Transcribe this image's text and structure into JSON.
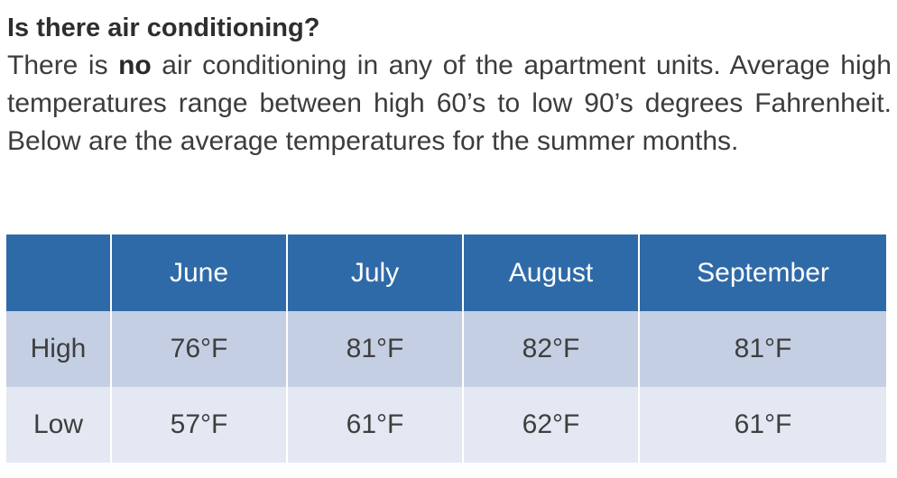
{
  "faq": {
    "question": "Is there air conditioning?",
    "answer_before": "There is ",
    "answer_emphasis": "no",
    "answer_after": " air conditioning in any of the apartment units. Average high temperatures range between high 60’s to low 90’s degrees Fahrenheit. Below are the average temperatures for the summer months."
  },
  "table": {
    "corner": "",
    "columns": [
      "June",
      "July",
      "August",
      "September"
    ],
    "rows": [
      {
        "label": "High",
        "values": [
          "76°F",
          "81°F",
          "82°F",
          "81°F"
        ]
      },
      {
        "label": "Low",
        "values": [
          "57°F",
          "61°F",
          "62°F",
          "61°F"
        ]
      }
    ]
  }
}
